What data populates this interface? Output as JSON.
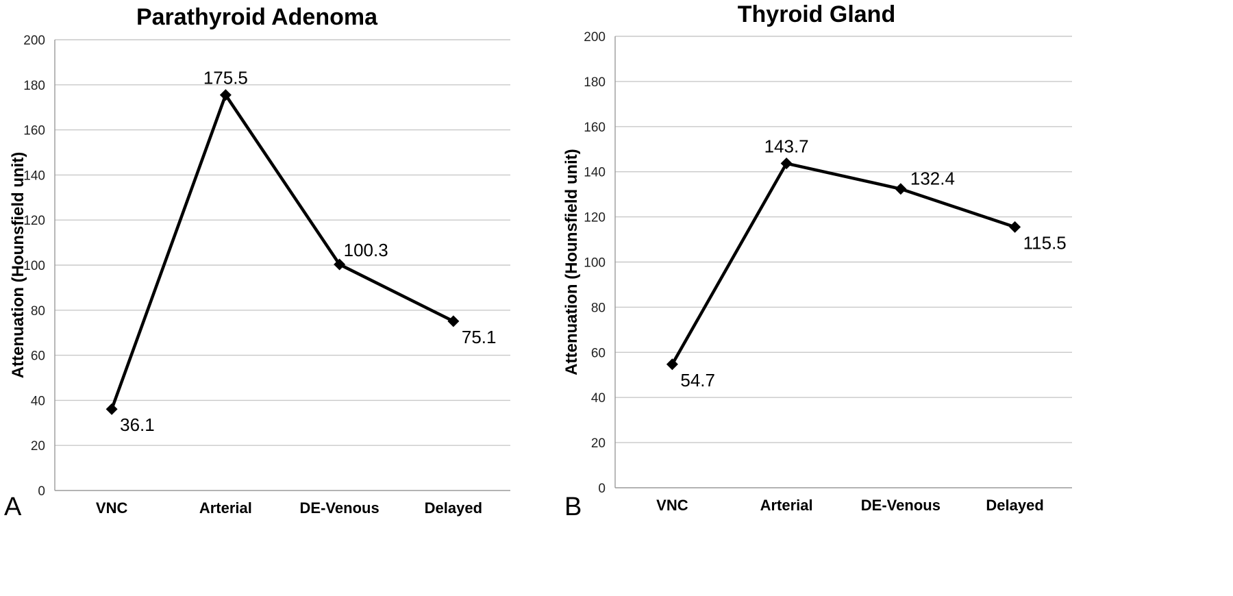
{
  "chart_data": [
    {
      "type": "line",
      "panel_letter": "A",
      "title": "Parathyroid Adenoma",
      "ylabel": "Attenuation  (Hounsfield unit)",
      "xlabel": "",
      "categories": [
        "VNC",
        "Arterial",
        "DE-Venous",
        "Delayed"
      ],
      "y_ticks": [
        "0",
        "20",
        "40",
        "60",
        "80",
        "100",
        "120",
        "140",
        "160",
        "180",
        "200"
      ],
      "ylim": [
        0,
        200
      ],
      "grid": true,
      "series": [
        {
          "values": [
            36.1,
            175.5,
            100.3,
            75.1
          ],
          "labels": [
            "36.1",
            "175.5",
            "100.3",
            "75.1"
          ],
          "label_positions": [
            "below-right",
            "above",
            "above-right",
            "below-right"
          ],
          "color": "#000000",
          "marker": "diamond"
        }
      ]
    },
    {
      "type": "line",
      "panel_letter": "B",
      "title": "Thyroid Gland",
      "ylabel": "Attenuation  (Hounsfield unit)",
      "xlabel": "",
      "categories": [
        "VNC",
        "Arterial",
        "DE-Venous",
        "Delayed"
      ],
      "y_ticks": [
        "0",
        "20",
        "40",
        "60",
        "80",
        "100",
        "120",
        "140",
        "160",
        "180",
        "200"
      ],
      "ylim": [
        0,
        200
      ],
      "grid": true,
      "series": [
        {
          "values": [
            54.7,
            143.7,
            132.4,
            115.5
          ],
          "labels": [
            "54.7",
            "143.7",
            "132.4",
            "115.5"
          ],
          "label_positions": [
            "below-right",
            "above",
            "right",
            "below-right"
          ],
          "color": "#000000",
          "marker": "diamond"
        }
      ]
    }
  ]
}
